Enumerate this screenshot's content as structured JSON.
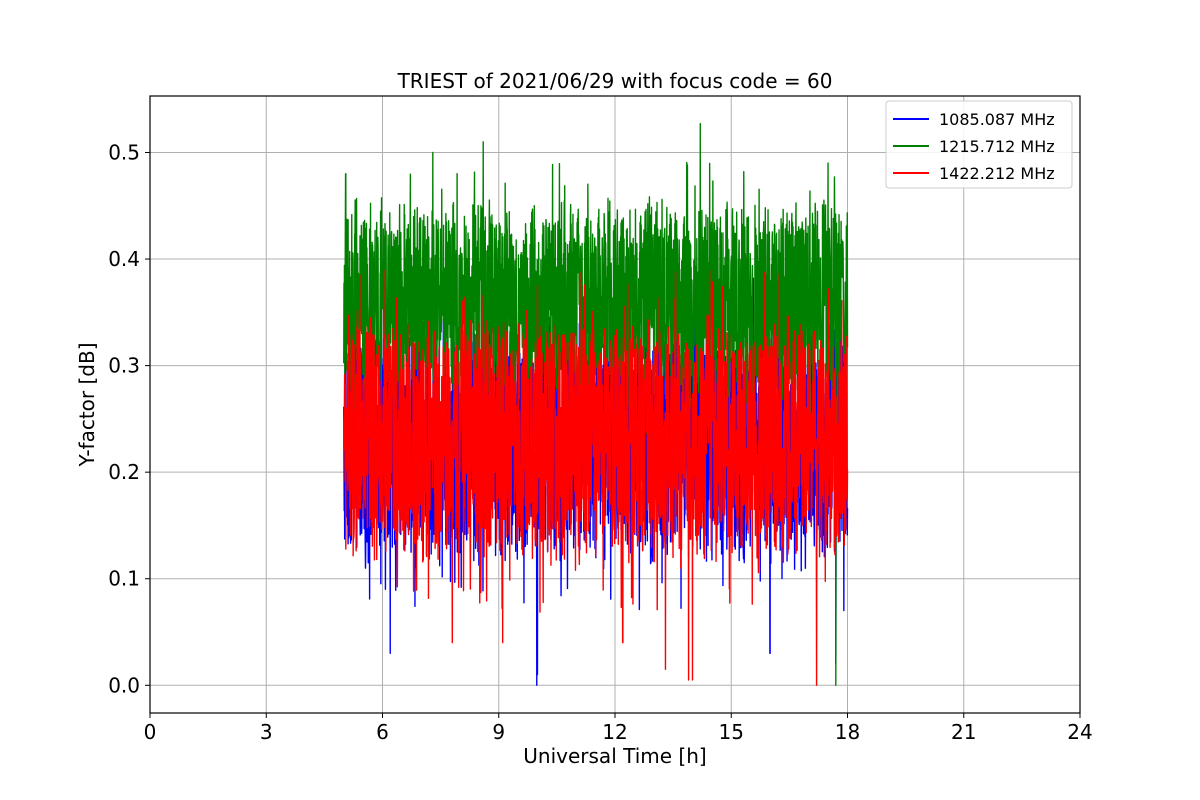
{
  "chart_data": {
    "type": "line",
    "title": "TRIEST of 2021/06/29 with focus code = 60",
    "xlabel": "Universal Time [h]",
    "ylabel": "Y-factor [dB]",
    "xlim": [
      0,
      24
    ],
    "ylim": [
      -0.026,
      0.553
    ],
    "xticks": [
      0,
      3,
      6,
      9,
      12,
      15,
      18,
      21,
      24
    ],
    "yticks": [
      0.0,
      0.1,
      0.2,
      0.3,
      0.4,
      0.5
    ],
    "grid": true,
    "legend_position": "upper right",
    "time_range": [
      5.0,
      18.0
    ],
    "series": [
      {
        "name": "1085.087 MHz",
        "color": "#0000ff",
        "center": 0.23,
        "typical_range": [
          0.1,
          0.34
        ],
        "min": 0.0,
        "min_at": 9.98,
        "low_spikes": [
          [
            6.2,
            0.03
          ],
          [
            9.98,
            0.0
          ],
          [
            10.0,
            0.01
          ],
          [
            16.0,
            0.03
          ],
          [
            17.7,
            0.02
          ]
        ]
      },
      {
        "name": "1215.712 MHz",
        "color": "#008000",
        "center": 0.36,
        "typical_range": [
          0.28,
          0.48
        ],
        "max": 0.527,
        "max_at": 14.2,
        "high_spikes": [
          [
            5.05,
            0.48
          ],
          [
            7.3,
            0.5
          ],
          [
            8.6,
            0.51
          ],
          [
            14.2,
            0.527
          ],
          [
            17.5,
            0.49
          ]
        ],
        "low_spikes": [
          [
            17.7,
            0.0
          ]
        ]
      },
      {
        "name": "1422.212 MHz",
        "color": "#ff0000",
        "center": 0.23,
        "typical_range": [
          0.12,
          0.36
        ],
        "max": 0.38,
        "low_spikes": [
          [
            7.8,
            0.04
          ],
          [
            9.1,
            0.04
          ],
          [
            12.2,
            0.04
          ],
          [
            13.3,
            0.015
          ],
          [
            13.9,
            0.005
          ],
          [
            14.0,
            0.005
          ],
          [
            17.2,
            0.0
          ]
        ]
      }
    ]
  }
}
